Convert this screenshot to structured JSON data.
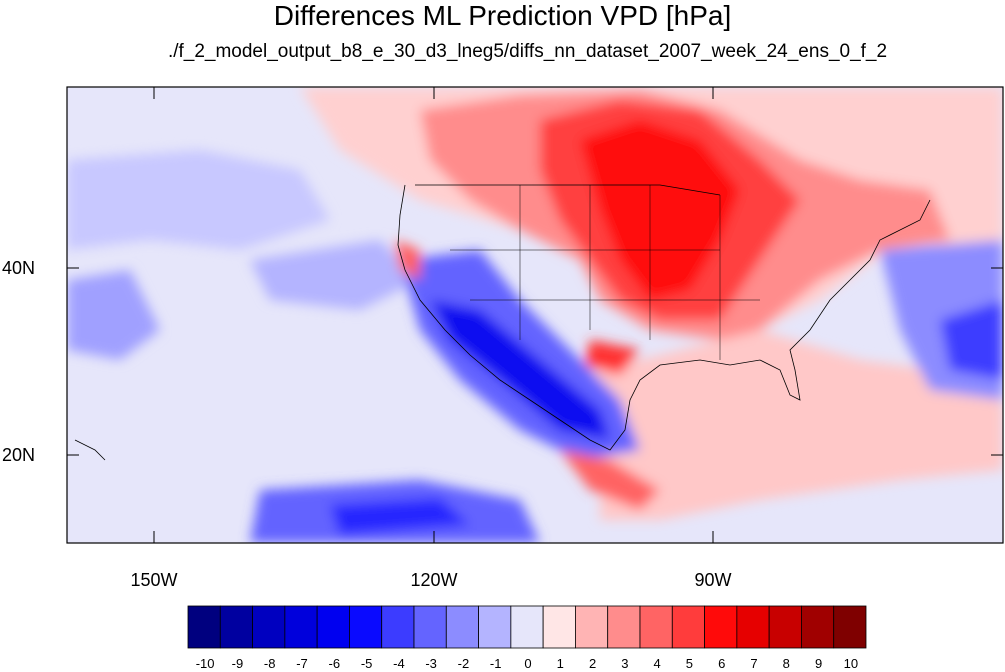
{
  "title": "Differences ML Prediction VPD [hPa]",
  "subtitle": "./f_2_model_output_b8_e_30_d3_lneg5/diffs_nn_dataset_2007_week_24_ens_0_f_2",
  "lat_labels": [
    "40N",
    "20N"
  ],
  "lon_labels": [
    "150W",
    "120W",
    "90W"
  ],
  "colorbar": {
    "labels": [
      "-10",
      "-9",
      "-8",
      "-7",
      "-6",
      "-5",
      "-4",
      "-3",
      "-2",
      "-1",
      "0",
      "1",
      "2",
      "3",
      "4",
      "5",
      "6",
      "7",
      "8",
      "9",
      "10"
    ],
    "colors": [
      "#00007f",
      "#0000a0",
      "#0000c0",
      "#0000dc",
      "#0000f0",
      "#0a0aff",
      "#3c3cff",
      "#6464ff",
      "#8c8cff",
      "#b4b4ff",
      "#e6e6fa",
      "#ffe6e6",
      "#ffb4b4",
      "#ff8c8c",
      "#ff6464",
      "#ff3c3c",
      "#ff0a0a",
      "#e60000",
      "#c80000",
      "#a00000",
      "#7f0000"
    ]
  }
}
